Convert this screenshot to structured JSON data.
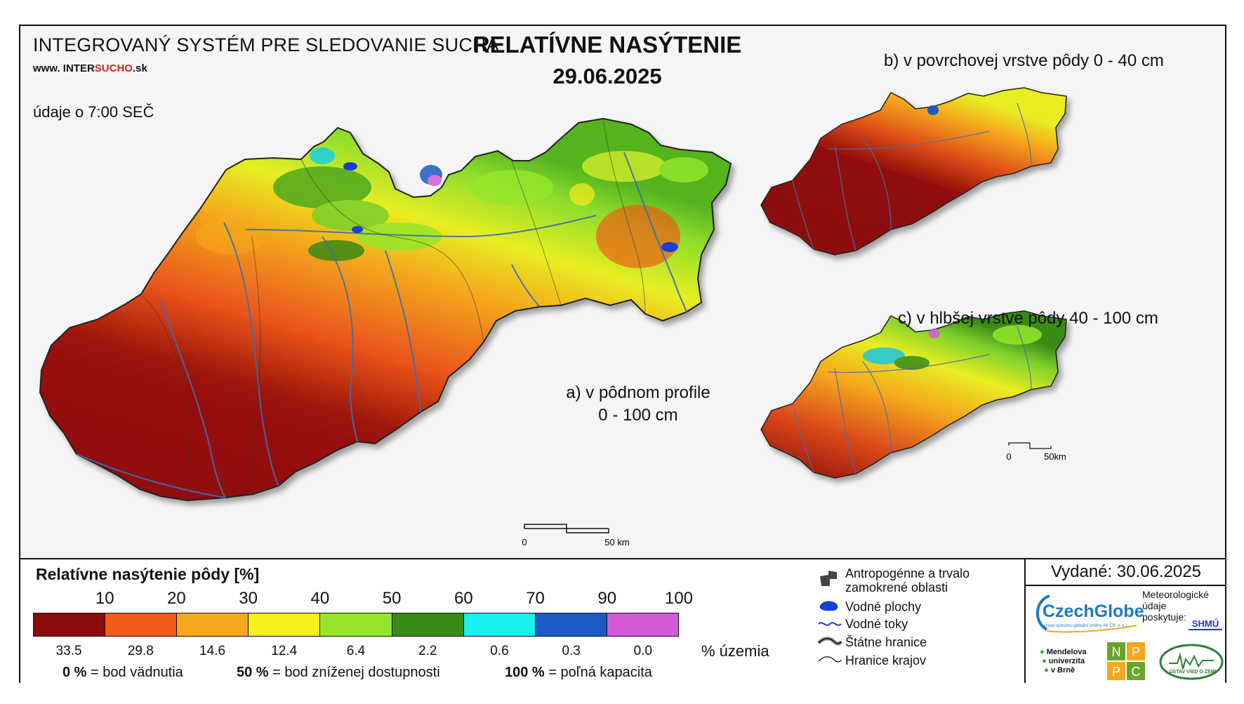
{
  "header": {
    "system_title": "INTEGROVANÝ SYSTÉM PRE SLEDOVANIE SUCHA",
    "website_prefix": "www.",
    "website_inter": "INTER",
    "website_sucho": "SUCHO",
    "website_suffix": ".sk",
    "time_info": "údaje o 7:00 SEČ",
    "main_title": "RELATÍVNE NASÝTENIE",
    "date": "29.06.2025"
  },
  "maps": {
    "a_label_line1": "a) v pôdnom profile",
    "a_label_line2": "0 - 100 cm",
    "b_label": "b) v povrchovej vrstve pôdy 0 - 40 cm",
    "c_label": "c) v hlbšej vrstve pôdy 40 - 100 cm",
    "scale_main_start": "0",
    "scale_main_end": "50 km",
    "scale_small_start": "0",
    "scale_small_end": "50km"
  },
  "legend": {
    "title": "Relatívne nasýtenie pôdy [%]",
    "ticks": [
      "10",
      "20",
      "30",
      "40",
      "50",
      "60",
      "70",
      "90",
      "100"
    ],
    "colors": [
      "#8b0a0a",
      "#f05a14",
      "#f5a81c",
      "#f7f01a",
      "#94e62c",
      "#3a8a16",
      "#19f0f0",
      "#1a5bc4",
      "#d25ad8"
    ],
    "territory_percent": [
      "33.5",
      "29.8",
      "14.6",
      "12.4",
      "6.4",
      "2.2",
      "0.6",
      "0.3",
      "0.0"
    ],
    "territory_unit": "% územia",
    "def_0_value": "0 %",
    "def_0_text": "= bod vädnutia",
    "def_50_value": "50 %",
    "def_50_text": "= bod zníženej dostupnosti",
    "def_100_value": "100 %",
    "def_100_text": "= poľná kapacita"
  },
  "symbols": {
    "anthropogenic_line1": "Antropogénne a trvalo",
    "anthropogenic_line2": "zamokrené oblasti",
    "water_bodies": "Vodné plochy",
    "water_streams": "Vodné toky",
    "state_borders": "Štátne hranice",
    "region_borders": "Hranice krajov"
  },
  "footer": {
    "issued": "Vydané: 30.06.2025",
    "czechglobe": "CzechGlobe",
    "czechglobe_sub": "Ústav výzkumu globální změny AV ČR, v. v. i.",
    "met_line1": "Meteorologické",
    "met_line2": "údaje",
    "met_line3": "poskytuje:",
    "shmu": "SHMÚ",
    "mendel_line1": "Mendelova",
    "mendel_line2": "univerzita",
    "mendel_line3": "v Brně",
    "npp_n": "N",
    "npp_p1": "P",
    "npp_p2": "P",
    "npp_c": "C",
    "uvz": "ÚSTAV VIED O ZEMI"
  }
}
